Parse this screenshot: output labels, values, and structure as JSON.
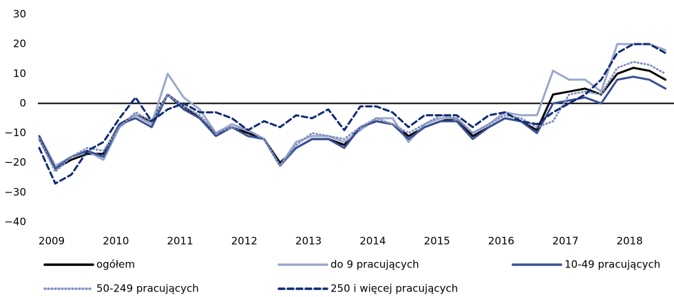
{
  "chart_data": {
    "type": "line",
    "x": [
      2009,
      2009.25,
      2009.5,
      2009.75,
      2010,
      2010.25,
      2010.5,
      2010.75,
      2011,
      2011.25,
      2011.5,
      2011.75,
      2012,
      2012.25,
      2012.5,
      2012.75,
      2013,
      2013.25,
      2013.5,
      2013.75,
      2014,
      2014.25,
      2014.5,
      2014.75,
      2015,
      2015.25,
      2015.5,
      2015.75,
      2016,
      2016.25,
      2016.5,
      2016.75,
      2017,
      2017.25,
      2017.5,
      2017.75,
      2018,
      2018.25,
      2018.5,
      2018.75
    ],
    "xlim": [
      2009,
      2018.83
    ],
    "xticks": [
      2009,
      2010,
      2011,
      2012,
      2013,
      2014,
      2015,
      2016,
      2017,
      2018
    ],
    "ylim": [
      -40,
      30
    ],
    "yticks": [
      {
        "value": -40,
        "label": "−40"
      },
      {
        "value": -30,
        "label": "−30"
      },
      {
        "value": -20,
        "label": "−20"
      },
      {
        "value": -10,
        "label": "−10"
      },
      0,
      10,
      20,
      30
    ],
    "series": [
      {
        "name": "ogółem",
        "color": "#000000",
        "dash": "solid",
        "values": [
          -12,
          -22,
          -19,
          -17,
          -17,
          -7,
          -4,
          -6,
          3,
          -1,
          -5,
          -10,
          -8,
          -10,
          -12,
          -20,
          -15,
          -12,
          -12,
          -14,
          -8,
          -6,
          -7,
          -11,
          -8,
          -6,
          -5,
          -11,
          -8,
          -5,
          -6,
          -9,
          3,
          4,
          5,
          3,
          10,
          12,
          11,
          8
        ]
      },
      {
        "name": "do 9 pracujących",
        "color": "#9ba8cc",
        "dash": "solid",
        "values": [
          -11,
          -21,
          -18,
          -16,
          -19,
          -8,
          -4,
          -7,
          10,
          2,
          -2,
          -10,
          -7,
          -9,
          -12,
          -21,
          -13,
          -11,
          -11,
          -13,
          -9,
          -5,
          -5,
          -13,
          -7,
          -5,
          -5,
          -10,
          -7,
          -3,
          -4,
          -4,
          11,
          8,
          8,
          4,
          20,
          20,
          20,
          18
        ]
      },
      {
        "name": "10-49 pracujących",
        "color": "#3a4f94",
        "dash": "solid",
        "values": [
          -11,
          -22,
          -18,
          -16,
          -18,
          -7,
          -5,
          -8,
          3,
          -2,
          -5,
          -11,
          -8,
          -11,
          -12,
          -21,
          -15,
          -12,
          -12,
          -15,
          -8,
          -6,
          -7,
          -12,
          -8,
          -6,
          -6,
          -12,
          -8,
          -5,
          -6,
          -10,
          0,
          1,
          2,
          0,
          8,
          9,
          8,
          5
        ]
      },
      {
        "name": "50-249 pracujących",
        "color": "#8090c0",
        "dash": "dotted",
        "values": [
          -12,
          -23,
          -18,
          -15,
          -16,
          -8,
          -3,
          -6,
          3,
          -1,
          -4,
          -10,
          -8,
          -9,
          -12,
          -21,
          -14,
          -10,
          -11,
          -12,
          -8,
          -5,
          -7,
          -10,
          -7,
          -4,
          -5,
          -10,
          -7,
          -4,
          -5,
          -8,
          -6,
          3,
          4,
          3,
          12,
          14,
          13,
          10
        ]
      },
      {
        "name": "250 i więcej pracujących",
        "color": "#102a73",
        "dash": "dashed",
        "values": [
          -15,
          -27,
          -24,
          -16,
          -13,
          -5,
          2,
          -6,
          -2,
          0,
          -3,
          -3,
          -5,
          -9,
          -6,
          -8,
          -4,
          -5,
          -2,
          -9,
          -1,
          -1,
          -3,
          -8,
          -4,
          -4,
          -4,
          -8,
          -4,
          -3,
          -6,
          -7,
          -3,
          0,
          3,
          8,
          17,
          20,
          20,
          17
        ]
      }
    ]
  }
}
